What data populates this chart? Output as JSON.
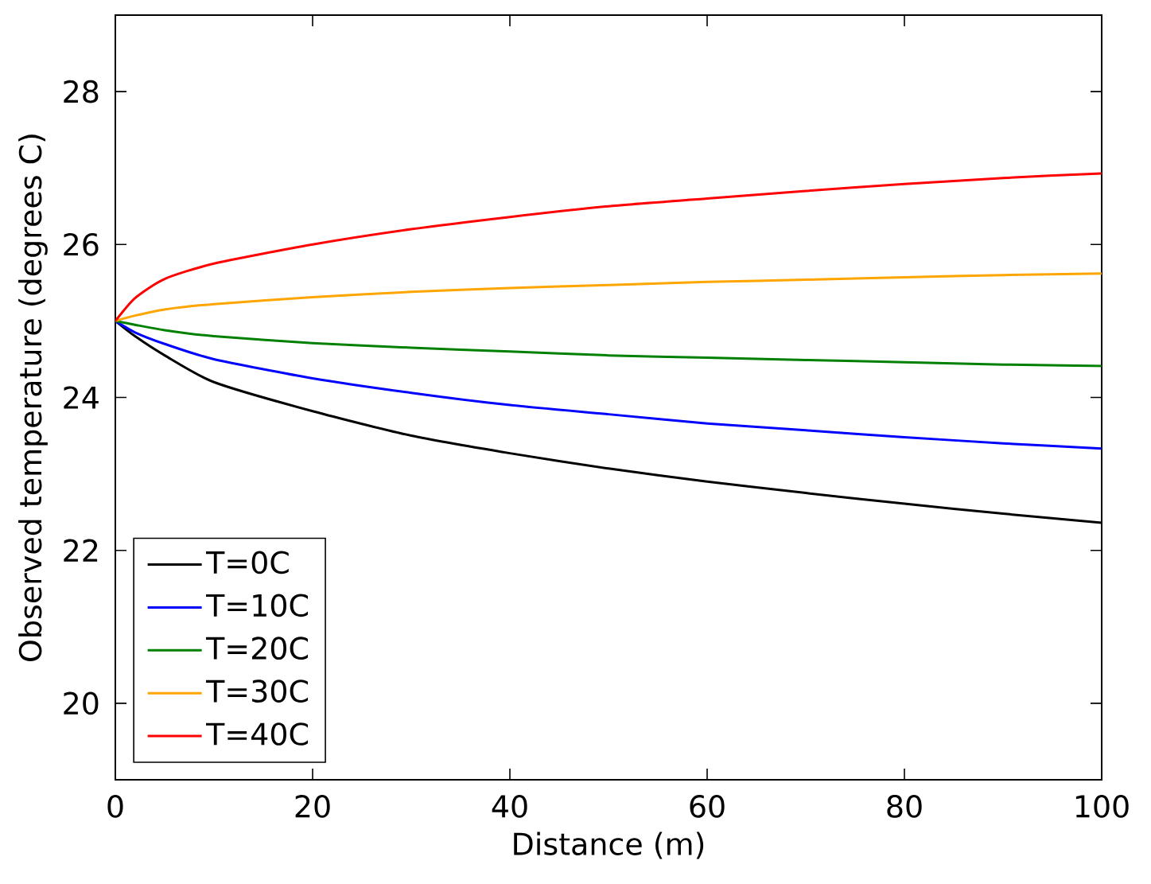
{
  "chart_data": {
    "type": "line",
    "xlabel": "Distance (m)",
    "ylabel": "Observed temperature (degrees C)",
    "x": [
      0,
      2,
      5,
      10,
      20,
      30,
      40,
      50,
      60,
      70,
      80,
      90,
      100
    ],
    "series": [
      {
        "name": "T=0C",
        "color": "#000000",
        "values": [
          25,
          24.8,
          24.55,
          24.2,
          23.82,
          23.5,
          23.27,
          23.07,
          22.9,
          22.75,
          22.61,
          22.48,
          22.36
        ]
      },
      {
        "name": "T=10C",
        "color": "#0000ff",
        "values": [
          25,
          24.85,
          24.7,
          24.5,
          24.25,
          24.06,
          23.9,
          23.78,
          23.66,
          23.57,
          23.48,
          23.4,
          23.33
        ]
      },
      {
        "name": "T=20C",
        "color": "#008000",
        "values": [
          25,
          24.95,
          24.88,
          24.8,
          24.71,
          24.65,
          24.6,
          24.55,
          24.52,
          24.49,
          24.46,
          24.43,
          24.41
        ]
      },
      {
        "name": "T=30C",
        "color": "#ffa500",
        "values": [
          25,
          25.07,
          25.15,
          25.22,
          25.31,
          25.38,
          25.43,
          25.47,
          25.51,
          25.54,
          25.57,
          25.6,
          25.62
        ]
      },
      {
        "name": "T=40C",
        "color": "#ff0000",
        "values": [
          25,
          25.3,
          25.55,
          25.75,
          26.0,
          26.2,
          26.36,
          26.5,
          26.6,
          26.7,
          26.79,
          26.87,
          26.93
        ]
      }
    ],
    "xlim": [
      0,
      100
    ],
    "ylim": [
      19,
      29
    ],
    "xticks": [
      0,
      20,
      40,
      60,
      80,
      100
    ],
    "yticks": [
      20,
      22,
      24,
      26,
      28
    ],
    "legend": "bottom left",
    "line_style": "solid"
  }
}
